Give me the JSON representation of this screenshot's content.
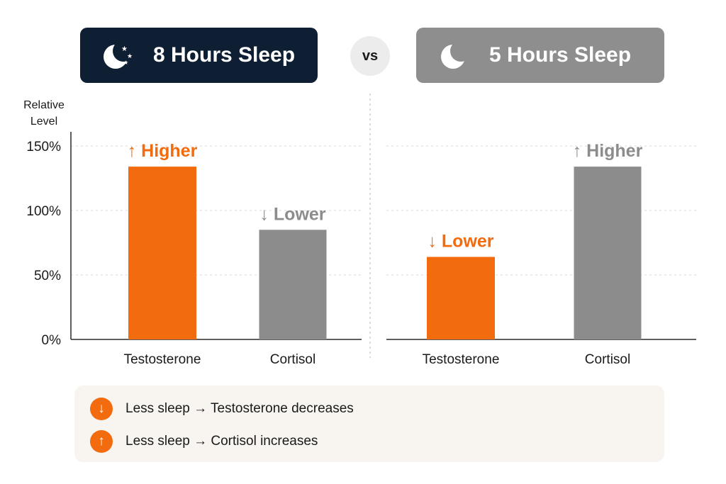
{
  "header": {
    "left_label": "8 Hours Sleep",
    "vs_label": "vs",
    "right_label": "5 Hours Sleep"
  },
  "colors": {
    "navy": "#0f1f33",
    "gray_badge": "#8e8e8e",
    "orange": "#f26b0f",
    "gray_bar": "#8c8c8c"
  },
  "icons": {
    "left": "moon-stars-icon",
    "right": "moon-icon",
    "legend_down": "arrow-down-icon",
    "legend_up": "arrow-up-icon"
  },
  "chart_data": [
    {
      "type": "bar",
      "ylabel": "Relative Level",
      "ylim": [
        0,
        150
      ],
      "y_ticks": [
        "0%",
        "50%",
        "100%",
        "150%"
      ],
      "grid": true,
      "categories": [
        "Testosterone",
        "Cortisol"
      ],
      "values": [
        134,
        85
      ],
      "annotations": [
        {
          "arrow": "↑",
          "text": "Higher",
          "color": "#f26b0f"
        },
        {
          "arrow": "↓",
          "text": "Lower",
          "color": "#8c8c8c"
        }
      ]
    },
    {
      "type": "bar",
      "ylim": [
        0,
        150
      ],
      "grid": true,
      "categories": [
        "Testosterone",
        "Cortisol"
      ],
      "values": [
        64,
        134
      ],
      "annotations": [
        {
          "arrow": "↓",
          "text": "Lower",
          "color": "#f26b0f"
        },
        {
          "arrow": "↑",
          "text": "Higher",
          "color": "#8c8c8c"
        }
      ]
    }
  ],
  "legend": {
    "items": [
      {
        "icon": "↓",
        "text": "Less sleep → Testosterone decreases"
      },
      {
        "icon": "↑",
        "text": "Less sleep → Cortisol increases"
      }
    ]
  }
}
